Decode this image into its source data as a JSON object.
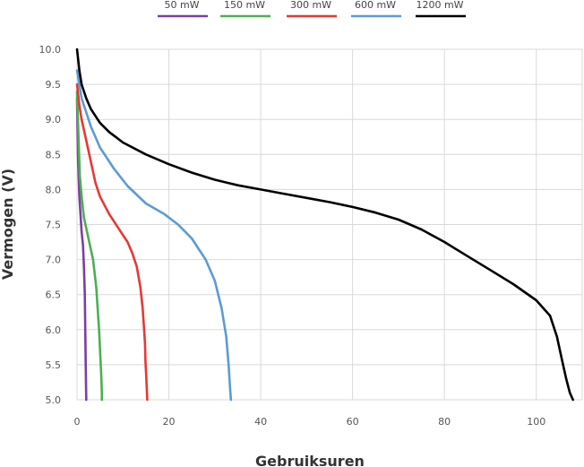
{
  "chart_data": {
    "type": "line",
    "title": "",
    "xlabel": "Gebruiksuren",
    "ylabel": "Vermogen (V)",
    "xlim": [
      0,
      110
    ],
    "ylim": [
      5.0,
      10.0
    ],
    "xticks": [
      "0",
      "20",
      "40",
      "60",
      "80",
      "100"
    ],
    "yticks": [
      "5.0",
      "5.5",
      "6.0",
      "6.5",
      "7.0",
      "7.5",
      "8.0",
      "8.5",
      "9.0",
      "9.5",
      "10.0"
    ],
    "grid": true,
    "legend_position": "top",
    "series": [
      {
        "name": "50 mW",
        "color": "#7b3fa0",
        "x": [
          0,
          0.2,
          0.5,
          0.8,
          1.0,
          1.3,
          1.5,
          1.7,
          1.8,
          1.9,
          2.0
        ],
        "y": [
          9.3,
          8.5,
          7.9,
          7.6,
          7.4,
          7.2,
          6.9,
          6.5,
          6.0,
          5.5,
          5.0
        ]
      },
      {
        "name": "150 mW",
        "color": "#4caf50",
        "x": [
          0,
          0.3,
          0.6,
          1.0,
          1.5,
          2.5,
          3.5,
          4.2,
          4.8,
          5.1,
          5.3,
          5.4,
          5.4
        ],
        "y": [
          9.4,
          8.8,
          8.2,
          7.9,
          7.6,
          7.3,
          7.0,
          6.6,
          6.0,
          5.6,
          5.3,
          5.1,
          5.0
        ]
      },
      {
        "name": "300 mW",
        "color": "#e53935",
        "x": [
          0,
          0.5,
          1,
          2,
          3,
          4,
          5,
          7,
          9,
          11,
          12,
          13,
          13.8,
          14.3,
          14.6,
          14.8,
          14.9,
          15.1,
          15.3
        ],
        "y": [
          9.5,
          9.2,
          9.0,
          8.7,
          8.4,
          8.1,
          7.9,
          7.65,
          7.45,
          7.25,
          7.1,
          6.9,
          6.6,
          6.3,
          6.0,
          5.8,
          5.55,
          5.3,
          5.0
        ]
      },
      {
        "name": "600 mW",
        "color": "#5b9bd5",
        "x": [
          0,
          1,
          2,
          3,
          5,
          8,
          11,
          15,
          19,
          22,
          25,
          28,
          30,
          31.5,
          32.5,
          33.0,
          33.3,
          33.5
        ],
        "y": [
          9.7,
          9.3,
          9.1,
          8.9,
          8.6,
          8.3,
          8.05,
          7.8,
          7.65,
          7.5,
          7.3,
          7.0,
          6.7,
          6.3,
          5.9,
          5.5,
          5.2,
          5.0
        ]
      },
      {
        "name": "1200 mW",
        "color": "#000000",
        "x": [
          0,
          0.5,
          1,
          2,
          3,
          5,
          7,
          10,
          15,
          20,
          25,
          30,
          35,
          40,
          45,
          50,
          55,
          60,
          65,
          70,
          75,
          80,
          85,
          90,
          95,
          100,
          103,
          104.5,
          105.5,
          106.5,
          107.3,
          108
        ],
        "y": [
          10.0,
          9.7,
          9.5,
          9.3,
          9.15,
          8.95,
          8.82,
          8.67,
          8.5,
          8.36,
          8.24,
          8.14,
          8.06,
          8.0,
          7.94,
          7.88,
          7.82,
          7.75,
          7.67,
          7.57,
          7.43,
          7.25,
          7.05,
          6.85,
          6.65,
          6.42,
          6.2,
          5.9,
          5.6,
          5.3,
          5.1,
          5.0
        ]
      }
    ]
  }
}
